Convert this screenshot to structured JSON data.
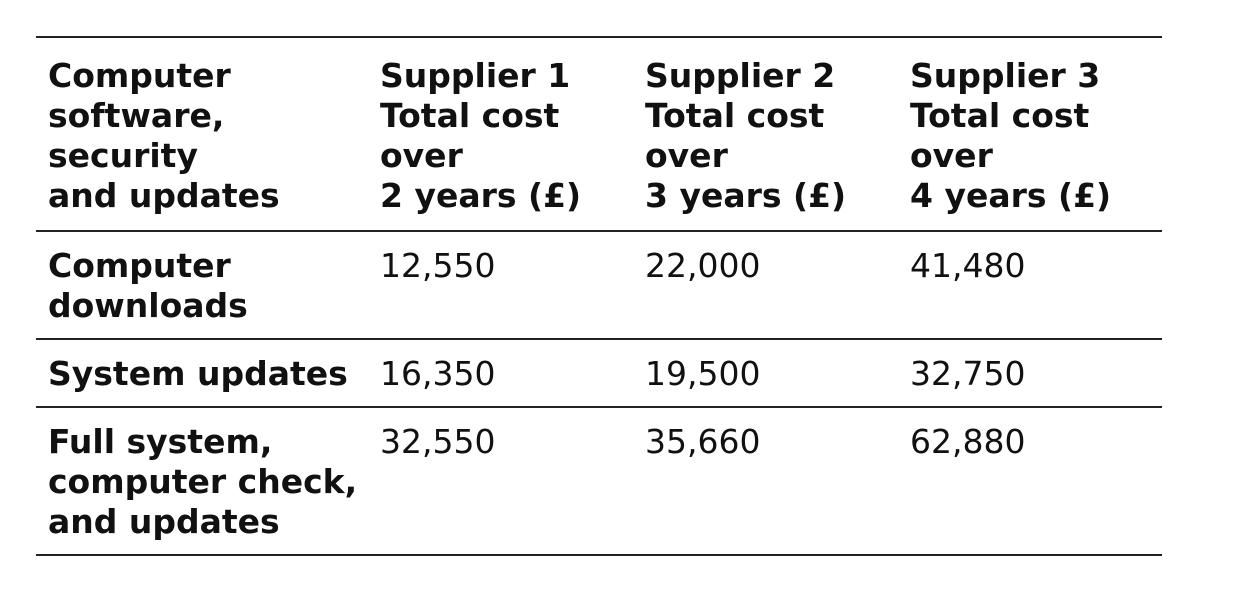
{
  "table": {
    "headers": [
      "Computer\nsoftware, security\nand updates",
      "Supplier 1\nTotal cost\nover\n2 years (£)",
      "Supplier 2\nTotal cost\nover\n3 years (£)",
      "Supplier 3\nTotal cost\nover\n4 years (£)"
    ],
    "rows": [
      {
        "label": "Computer\ndownloads",
        "values": [
          "12,550",
          "22,000",
          "41,480"
        ]
      },
      {
        "label": "System updates",
        "values": [
          "16,350",
          "19,500",
          "32,750"
        ]
      },
      {
        "label": "Full system,\ncomputer check,\nand updates",
        "values": [
          "32,550",
          "35,660",
          "62,880"
        ]
      }
    ]
  }
}
